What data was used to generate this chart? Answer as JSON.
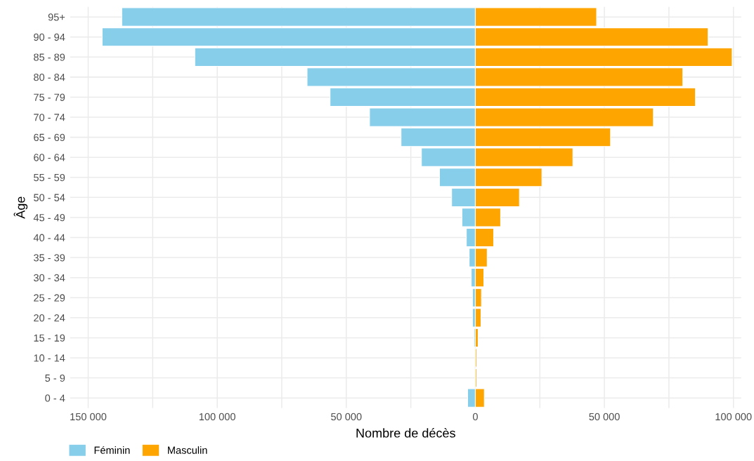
{
  "chart_data": {
    "type": "bar",
    "orientation": "horizontal",
    "xlabel": "Nombre de décès",
    "ylabel": "Âge",
    "categories": [
      "95+",
      "90 - 94",
      "85 - 89",
      "80 - 84",
      "75 - 79",
      "70 - 74",
      "65 - 69",
      "60 - 64",
      "55 - 59",
      "50 - 54",
      "45 - 49",
      "40 - 44",
      "35 - 39",
      "30 - 34",
      "25 - 29",
      "20 - 24",
      "15 - 19",
      "10 - 14",
      "5 - 9",
      "0 - 4"
    ],
    "series": [
      {
        "name": "Féminin",
        "color": "#87ceeb",
        "values": [
          -137000,
          -144600,
          -108700,
          -65200,
          -56300,
          -41000,
          -28800,
          -20900,
          -13900,
          -9200,
          -5200,
          -3500,
          -2400,
          -1600,
          -1100,
          -1100,
          -500,
          null,
          null,
          -3000
        ]
      },
      {
        "name": "Masculin",
        "color": "#ffa500",
        "values": [
          47000,
          90200,
          99500,
          80400,
          85300,
          69000,
          52400,
          37800,
          25800,
          17100,
          9800,
          7100,
          4600,
          3300,
          2400,
          2200,
          1100,
          500,
          500,
          3500
        ]
      }
    ],
    "xlim": [
      -157000,
      103000
    ],
    "xticks": [
      {
        "value": -150000,
        "label": "150 000"
      },
      {
        "value": -125000,
        "label": null
      },
      {
        "value": -100000,
        "label": "100 000"
      },
      {
        "value": -75000,
        "label": null
      },
      {
        "value": -50000,
        "label": "50 000"
      },
      {
        "value": -25000,
        "label": null
      },
      0,
      {
        "value": 25000,
        "label": null
      },
      {
        "value": 50000,
        "label": "50 000"
      },
      {
        "value": 75000,
        "label": null
      },
      {
        "value": 100000,
        "label": "100 000"
      }
    ],
    "stacked": true,
    "grid": true,
    "legend": "bottom left"
  }
}
